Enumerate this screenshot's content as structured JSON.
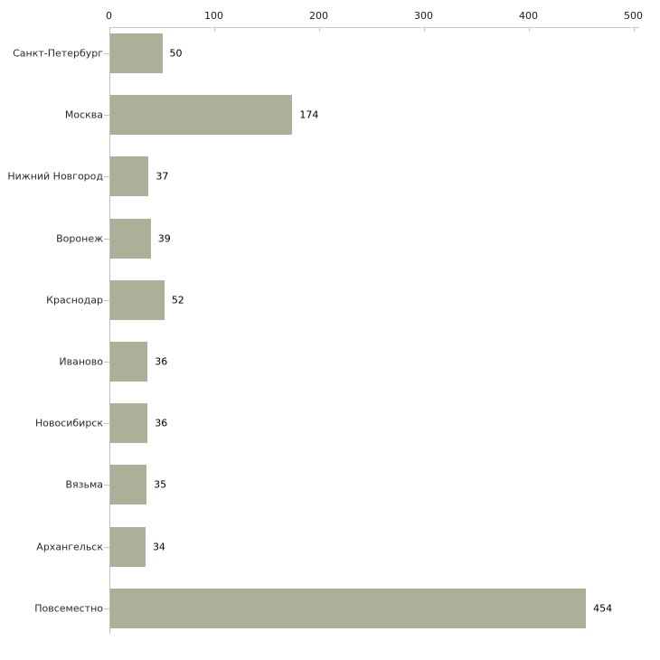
{
  "chart_data": {
    "type": "bar",
    "orientation": "horizontal",
    "categories": [
      "Санкт-Петербург",
      "Москва",
      "Нижний Новгород",
      "Воронеж",
      "Краснодар",
      "Иваново",
      "Новосибирск",
      "Вязьма",
      "Архангельск",
      "Повсеместно"
    ],
    "values": [
      50,
      174,
      37,
      39,
      52,
      36,
      36,
      35,
      34,
      454
    ],
    "data_labels": [
      "50",
      "174",
      "37",
      "39",
      "52",
      "36",
      "36",
      "35",
      "34",
      "454"
    ],
    "x_ticks": [
      0,
      100,
      200,
      300,
      400,
      500
    ],
    "x_tick_labels": [
      "0",
      "100",
      "200",
      "300",
      "400",
      "500"
    ],
    "xlim": [
      0,
      500
    ],
    "grid": false,
    "legend": false,
    "axis_position": "top",
    "colors": {
      "bar": "#abb198",
      "axis_line": "#c6c6c6",
      "tick_mark": "#c3c9a2",
      "text": "#1a1a1a",
      "background": "#ffffff"
    }
  }
}
